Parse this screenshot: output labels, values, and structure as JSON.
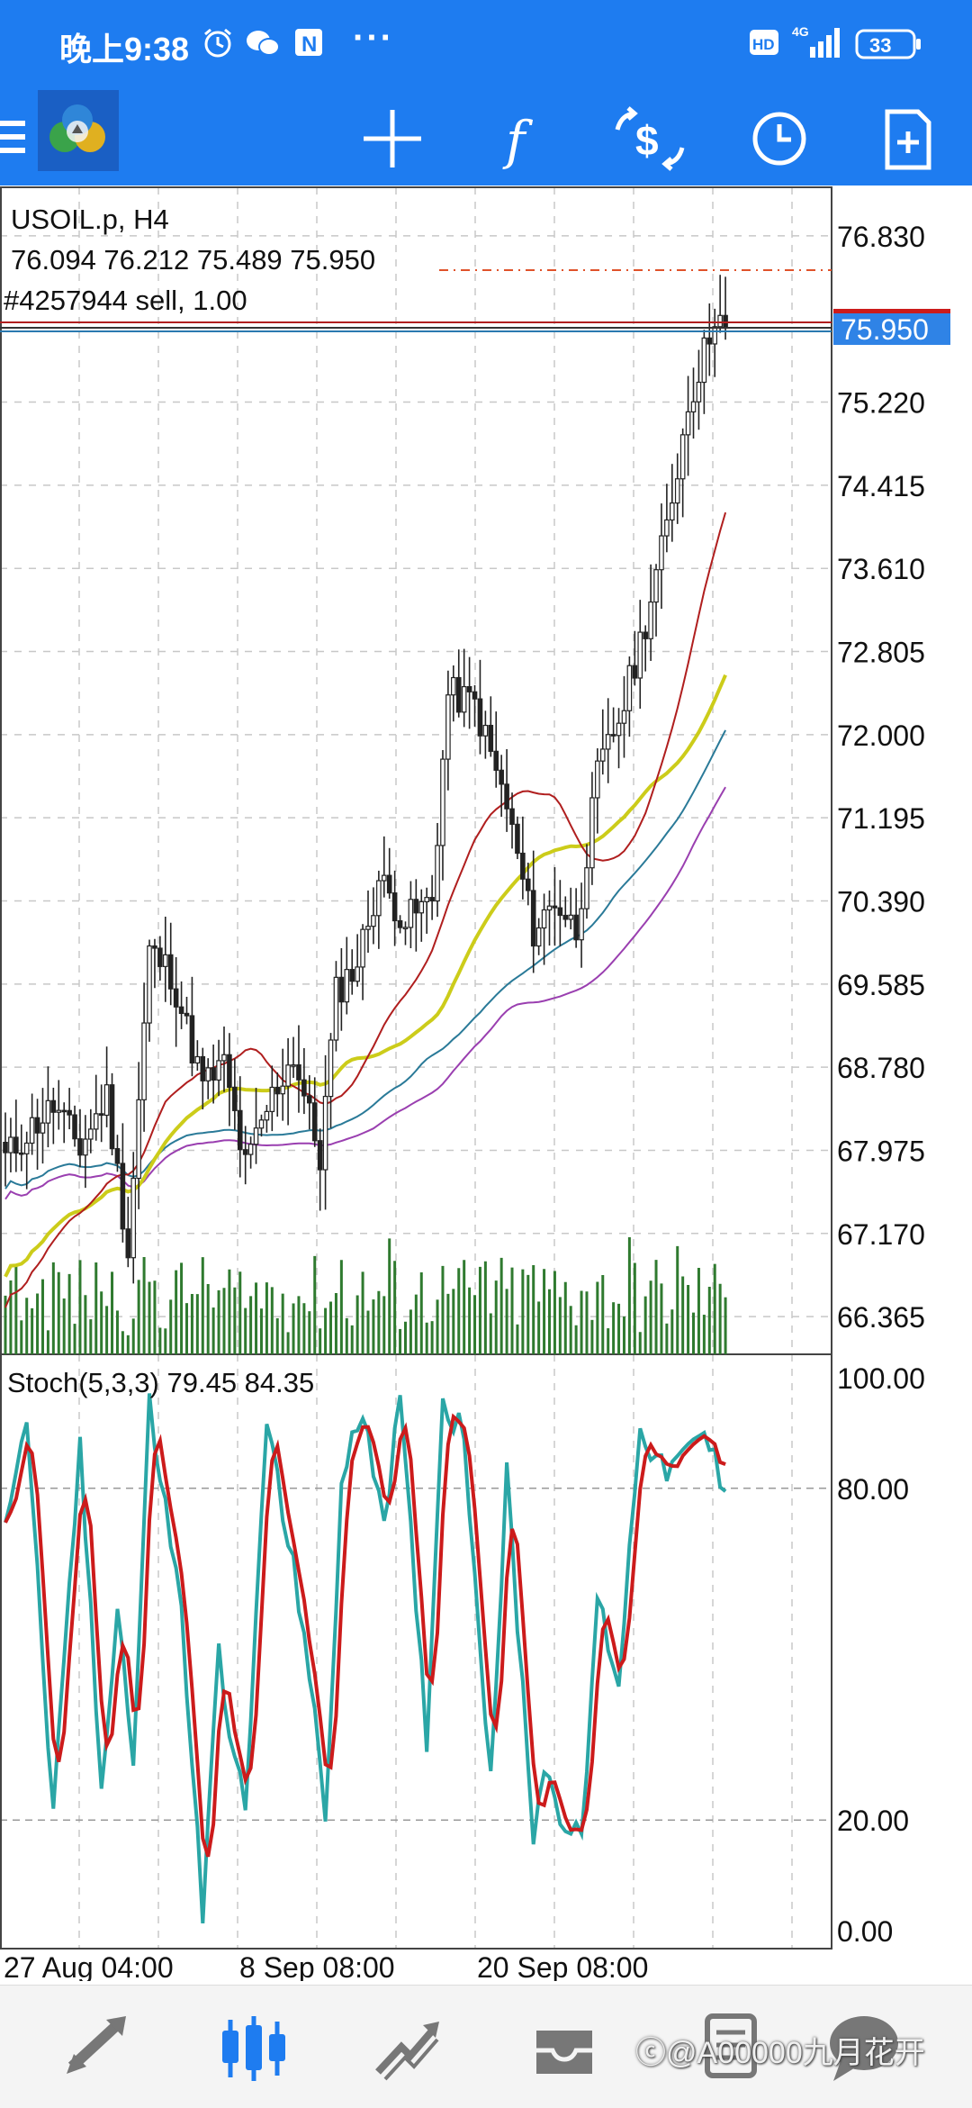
{
  "status_bar": {
    "time": "晚上9:38",
    "more": "···",
    "network": "4G",
    "battery": "33"
  },
  "toolbar": {
    "items": [
      {
        "name": "crosshair",
        "icon": "crosshair-icon"
      },
      {
        "name": "indicators",
        "icon": "function-icon"
      },
      {
        "name": "trade",
        "icon": "trade-dollar-icon"
      },
      {
        "name": "history",
        "icon": "clock-icon"
      },
      {
        "name": "new-order",
        "icon": "new-document-icon"
      }
    ]
  },
  "chart": {
    "symbol_line": "USOIL.p, H4",
    "ohlc_line": "76.094 76.212 75.489 75.950",
    "order_line": "#4257944 sell, 1.00",
    "current_price": "75.950",
    "price_ticks": [
      "76.830",
      "75.220",
      "74.415",
      "73.610",
      "72.805",
      "72.000",
      "71.195",
      "70.390",
      "69.585",
      "68.780",
      "67.975",
      "67.170",
      "66.365"
    ],
    "stoch_label": "Stoch(5,3,3) 79.45 84.35",
    "stoch_ticks": [
      "100.00",
      "80.00",
      "20.00",
      "0.00"
    ],
    "time_labels": [
      "27 Aug 04:00",
      "8 Sep 08:00",
      "20 Sep 08:00"
    ],
    "colors": {
      "ma_fast": "#b01e1e",
      "ma_yellow": "#cccc1a",
      "ma_teal": "#2a7a98",
      "ma_purple": "#9a3fb0",
      "volume": "#2f7a2f",
      "stoch_main": "#2aa6a6",
      "stoch_signal": "#cc1b1b",
      "accent": "#1e7cf0"
    }
  },
  "chart_data": {
    "type": "candlestick",
    "title": "USOIL.p, H4",
    "ylim": [
      66.0,
      77.3
    ],
    "price_ticks": [
      76.83,
      75.22,
      74.415,
      73.61,
      72.805,
      72.0,
      71.195,
      70.39,
      69.585,
      68.78,
      67.975,
      67.17,
      66.365
    ],
    "last_close": 75.95,
    "order": {
      "id": "#4257944",
      "side": "sell",
      "volume": 1.0
    },
    "close_trend": [
      {
        "x_label": "27 Aug 04:00",
        "close": 68.4
      },
      {
        "x_label": "8 Sep 08:00",
        "close": 68.3
      },
      {
        "x_label": "20 Sep 08:00",
        "close": 70.1
      },
      {
        "x_label": "last",
        "close": 75.95
      }
    ],
    "indicator": {
      "name": "Stoch(5,3,3)",
      "main": 79.45,
      "signal": 84.35,
      "levels": [
        80,
        20
      ],
      "ylim": [
        0,
        100
      ]
    }
  }
}
